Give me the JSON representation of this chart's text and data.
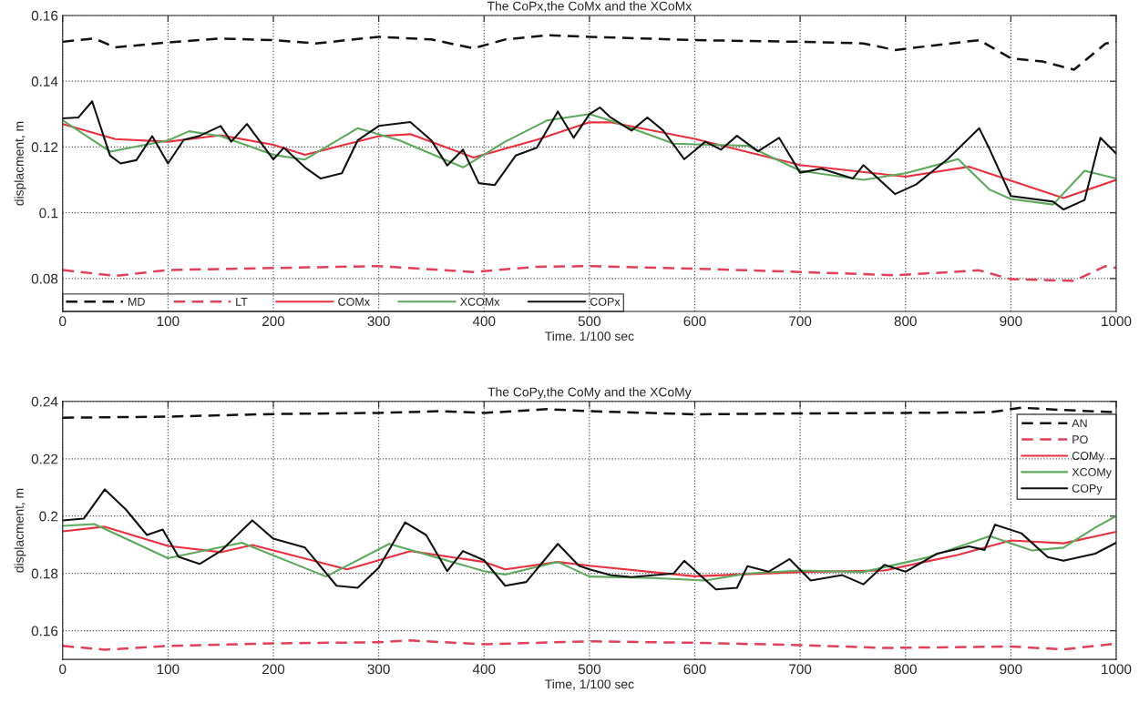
{
  "chart_data": [
    {
      "type": "line",
      "title": "The CoPx,the CoMx and the XCoMx",
      "xlabel": "Time. 1/100 sec",
      "ylabel": "displacment, m",
      "xlim": [
        0,
        1000
      ],
      "xticks": [
        0,
        100,
        200,
        300,
        400,
        500,
        600,
        700,
        800,
        900,
        1000
      ],
      "ylim": [
        0.07,
        0.16
      ],
      "yticks": [
        0.08,
        0.1,
        0.12,
        0.14,
        0.16
      ],
      "grid": true,
      "legend": "bottom left",
      "series": [
        {
          "name": "MD",
          "color": "#111111",
          "line_style": "dashed",
          "x": [
            0,
            30,
            50,
            100,
            150,
            200,
            240,
            300,
            350,
            390,
            420,
            460,
            500,
            600,
            700,
            760,
            790,
            830,
            870,
            900,
            930,
            960,
            990,
            1000
          ],
          "values": [
            0.152,
            0.153,
            0.1503,
            0.1518,
            0.153,
            0.1525,
            0.1515,
            0.1535,
            0.1527,
            0.15,
            0.1527,
            0.154,
            0.1535,
            0.1525,
            0.152,
            0.1515,
            0.1495,
            0.151,
            0.1525,
            0.147,
            0.146,
            0.1435,
            0.1515,
            0.152
          ]
        },
        {
          "name": "LT",
          "color": "#e0405a",
          "line_style": "dashed",
          "x": [
            0,
            50,
            100,
            200,
            300,
            390,
            450,
            500,
            600,
            700,
            790,
            870,
            900,
            960,
            990,
            1000
          ],
          "values": [
            0.0826,
            0.0808,
            0.0826,
            0.0832,
            0.0838,
            0.082,
            0.0836,
            0.0838,
            0.083,
            0.082,
            0.081,
            0.0825,
            0.0798,
            0.0793,
            0.0838,
            0.0832
          ]
        },
        {
          "name": "COMx",
          "color": "#e8303f",
          "line_style": "solid",
          "x": [
            0,
            50,
            100,
            150,
            200,
            230,
            300,
            330,
            390,
            450,
            500,
            520,
            600,
            700,
            800,
            860,
            950,
            1000
          ],
          "values": [
            0.127,
            0.1224,
            0.1216,
            0.1236,
            0.1207,
            0.1176,
            0.1233,
            0.1239,
            0.1168,
            0.1222,
            0.1275,
            0.1275,
            0.1225,
            0.1145,
            0.111,
            0.114,
            0.1045,
            0.11
          ]
        },
        {
          "name": "XCOMx",
          "color": "#5ea85e",
          "line_style": "solid",
          "x": [
            0,
            45,
            100,
            120,
            150,
            200,
            230,
            280,
            320,
            380,
            420,
            460,
            500,
            520,
            580,
            650,
            700,
            760,
            800,
            850,
            880,
            900,
            940,
            970,
            1000
          ],
          "values": [
            0.1281,
            0.1186,
            0.122,
            0.1248,
            0.1233,
            0.1176,
            0.1162,
            0.1257,
            0.122,
            0.1138,
            0.1216,
            0.1281,
            0.13,
            0.128,
            0.121,
            0.1204,
            0.1128,
            0.11,
            0.112,
            0.1163,
            0.107,
            0.1042,
            0.1025,
            0.1128,
            0.1104
          ]
        },
        {
          "name": "COPx",
          "color": "#111111",
          "line_style": "solid",
          "x": [
            0,
            15,
            28,
            45,
            55,
            70,
            85,
            100,
            115,
            130,
            150,
            160,
            175,
            200,
            210,
            230,
            245,
            265,
            280,
            300,
            330,
            350,
            365,
            380,
            395,
            410,
            430,
            450,
            470,
            485,
            500,
            510,
            520,
            540,
            555,
            570,
            590,
            610,
            625,
            640,
            660,
            680,
            700,
            720,
            750,
            760,
            790,
            810,
            840,
            870,
            880,
            900,
            940,
            950,
            970,
            985,
            1000
          ],
          "values": [
            0.1287,
            0.129,
            0.1339,
            0.1174,
            0.115,
            0.116,
            0.1233,
            0.115,
            0.1222,
            0.1234,
            0.1264,
            0.1216,
            0.127,
            0.1162,
            0.1198,
            0.1138,
            0.1104,
            0.112,
            0.122,
            0.1264,
            0.1276,
            0.122,
            0.1144,
            0.1192,
            0.109,
            0.1084,
            0.1174,
            0.1198,
            0.1308,
            0.1228,
            0.13,
            0.132,
            0.129,
            0.125,
            0.129,
            0.125,
            0.1163,
            0.1216,
            0.1192,
            0.1234,
            0.1187,
            0.1228,
            0.1122,
            0.1134,
            0.1104,
            0.1145,
            0.1057,
            0.1086,
            0.1163,
            0.1257,
            0.1192,
            0.1051,
            0.1034,
            0.101,
            0.1039,
            0.1228,
            0.118
          ]
        }
      ]
    },
    {
      "type": "line",
      "title": "The CoPy,the CoMy and the XCoMy",
      "xlabel": "Time, 1/100 sec",
      "ylabel": "displacment, m",
      "xlim": [
        0,
        1000
      ],
      "xticks": [
        0,
        100,
        200,
        300,
        400,
        500,
        600,
        700,
        800,
        900,
        1000
      ],
      "ylim": [
        0.15,
        0.24
      ],
      "yticks": [
        0.16,
        0.18,
        0.2,
        0.22,
        0.24
      ],
      "grid": true,
      "legend": "top right",
      "series": [
        {
          "name": "AN",
          "color": "#111111",
          "line_style": "dashed",
          "x": [
            0,
            100,
            200,
            300,
            360,
            400,
            460,
            500,
            600,
            700,
            800,
            880,
            910,
            950,
            1000
          ],
          "values": [
            0.2343,
            0.2347,
            0.2356,
            0.236,
            0.2366,
            0.236,
            0.2373,
            0.2366,
            0.2355,
            0.2358,
            0.236,
            0.2362,
            0.2378,
            0.237,
            0.2362
          ]
        },
        {
          "name": "PO",
          "color": "#e0405a",
          "line_style": "dashed",
          "x": [
            0,
            40,
            100,
            200,
            300,
            330,
            400,
            500,
            600,
            700,
            780,
            900,
            950,
            1000
          ],
          "values": [
            0.1547,
            0.1534,
            0.1547,
            0.1556,
            0.156,
            0.1566,
            0.1553,
            0.1563,
            0.1558,
            0.155,
            0.154,
            0.1545,
            0.1535,
            0.1555
          ]
        },
        {
          "name": "COMy",
          "color": "#e8303f",
          "line_style": "solid",
          "x": [
            0,
            40,
            100,
            150,
            180,
            270,
            330,
            400,
            420,
            470,
            500,
            600,
            700,
            780,
            850,
            900,
            950,
            1000
          ],
          "values": [
            0.1947,
            0.1963,
            0.1896,
            0.1874,
            0.1899,
            0.1814,
            0.1878,
            0.184,
            0.1814,
            0.184,
            0.1827,
            0.179,
            0.1805,
            0.181,
            0.1865,
            0.1915,
            0.1905,
            0.1945
          ]
        },
        {
          "name": "XCOMy",
          "color": "#5ea85e",
          "line_style": "solid",
          "x": [
            0,
            30,
            100,
            170,
            250,
            310,
            400,
            420,
            470,
            500,
            560,
            610,
            650,
            700,
            760,
            820,
            880,
            920,
            950,
            980,
            1000
          ],
          "values": [
            0.1966,
            0.1972,
            0.1853,
            0.1907,
            0.1789,
            0.1903,
            0.1808,
            0.1796,
            0.184,
            0.1789,
            0.1784,
            0.1775,
            0.18,
            0.181,
            0.1805,
            0.1855,
            0.193,
            0.188,
            0.189,
            0.196,
            0.2
          ]
        },
        {
          "name": "COPy",
          "color": "#111111",
          "line_style": "solid",
          "x": [
            0,
            20,
            40,
            60,
            80,
            95,
            110,
            130,
            150,
            180,
            200,
            230,
            260,
            280,
            300,
            325,
            345,
            365,
            380,
            400,
            420,
            440,
            470,
            490,
            500,
            520,
            540,
            580,
            590,
            620,
            640,
            650,
            670,
            690,
            710,
            740,
            760,
            780,
            800,
            830,
            860,
            875,
            885,
            910,
            935,
            950,
            980,
            1000
          ],
          "values": [
            0.1985,
            0.1991,
            0.2093,
            0.2023,
            0.1934,
            0.1953,
            0.1858,
            0.1833,
            0.1878,
            0.1985,
            0.1921,
            0.189,
            0.1757,
            0.175,
            0.182,
            0.1978,
            0.1934,
            0.1808,
            0.1878,
            0.1846,
            0.1757,
            0.177,
            0.1903,
            0.1827,
            0.1814,
            0.1794,
            0.1787,
            0.18,
            0.1844,
            0.1744,
            0.175,
            0.1825,
            0.1806,
            0.185,
            0.1775,
            0.1794,
            0.1762,
            0.183,
            0.1806,
            0.1869,
            0.1894,
            0.1882,
            0.197,
            0.194,
            0.1857,
            0.1844,
            0.1869,
            0.1907
          ]
        }
      ]
    }
  ]
}
